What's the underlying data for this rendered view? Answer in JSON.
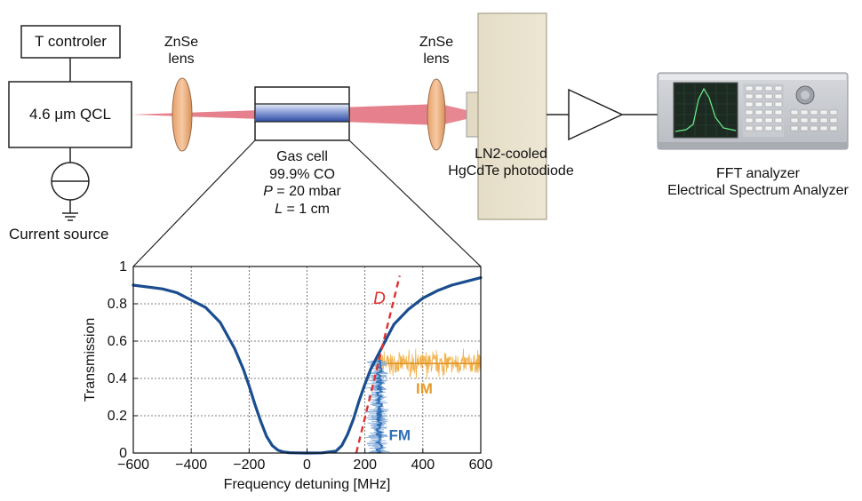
{
  "setup": {
    "t_controller": "T controler",
    "qcl": "4.6 μm QCL",
    "current_source": "Current source",
    "lens_left": [
      "ZnSe",
      "lens"
    ],
    "lens_right": [
      "ZnSe",
      "lens"
    ],
    "gas_cell": {
      "name": "Gas cell",
      "gas": "99.9% CO",
      "pressure_sym": "P",
      "pressure_val": " = 20 mbar",
      "length_sym": "L",
      "length_val": " = 1 cm"
    },
    "detector": [
      "LN2-cooled",
      "HgCdTe photodiode"
    ],
    "analyzer": [
      "FFT analyzer",
      "Electrical Spectrum Analyzer"
    ]
  },
  "chart_data": {
    "type": "line",
    "xlabel": "Frequency detuning [MHz]",
    "ylabel": "Transmission",
    "xlim": [
      -600,
      600
    ],
    "ylim": [
      0,
      1
    ],
    "xticks": [
      -600,
      -400,
      -200,
      0,
      200,
      400,
      600
    ],
    "xtick_labels": [
      "−600",
      "−400",
      "−200",
      "0",
      "200",
      "400",
      "600"
    ],
    "yticks": [
      0,
      0.2,
      0.4,
      0.6,
      0.8,
      1
    ],
    "ytick_labels": [
      "0",
      "0.2",
      "0.4",
      "0.6",
      "0.8",
      "1"
    ],
    "grid": true,
    "transmission": {
      "x": [
        -600,
        -500,
        -450,
        -400,
        -350,
        -300,
        -250,
        -220,
        -200,
        -180,
        -160,
        -140,
        -120,
        -100,
        -80,
        -60,
        -40,
        0,
        50,
        100,
        120,
        140,
        160,
        180,
        200,
        220,
        240,
        260,
        280,
        300,
        350,
        400,
        450,
        500,
        550,
        600
      ],
      "y": [
        0.9,
        0.88,
        0.86,
        0.82,
        0.78,
        0.7,
        0.56,
        0.45,
        0.36,
        0.26,
        0.17,
        0.09,
        0.04,
        0.015,
        0.005,
        0.002,
        0.001,
        0.0,
        0.001,
        0.01,
        0.04,
        0.1,
        0.18,
        0.28,
        0.37,
        0.45,
        0.51,
        0.57,
        0.63,
        0.69,
        0.77,
        0.83,
        0.87,
        0.9,
        0.92,
        0.94
      ],
      "color": "#1a4d8f"
    },
    "discriminator": {
      "label": "D",
      "x": [
        170,
        320
      ],
      "y": [
        0.0,
        0.95
      ],
      "color": "#e03030"
    },
    "fm": {
      "label": "FM",
      "x_range": [
        195,
        295
      ],
      "center": 250,
      "y_max": 0.5,
      "color": "#2f6fb6"
    },
    "im": {
      "label": "IM",
      "x_range": [
        240,
        600
      ],
      "center_y": 0.48,
      "spread": 0.05,
      "color": "#f0a83a"
    }
  },
  "colors": {
    "beam": "#e3727f",
    "lens": "#e6a977",
    "cell_gradient_dark": "#3150a8",
    "detector": "#e9e2cd"
  }
}
